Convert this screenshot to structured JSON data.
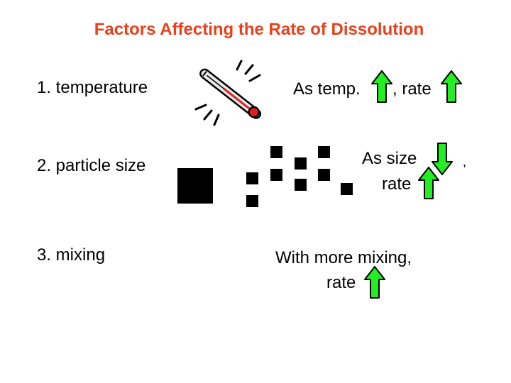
{
  "title": "Factors Affecting the Rate of Dissolution",
  "factors": [
    {
      "label": "1. temperature",
      "statement": {
        "pre": "As temp.",
        "mid": ", rate"
      }
    },
    {
      "label": "2. particle size",
      "statement": {
        "line1": "As size",
        "comma": ",",
        "line2": "rate"
      }
    },
    {
      "label": "3. mixing",
      "statement": {
        "line1": "With more mixing,",
        "line2": "rate"
      }
    }
  ],
  "icons": {
    "thermometer": "thermometer-icon",
    "up": "green-up-arrow-icon",
    "down": "green-down-arrow-icon"
  },
  "colors": {
    "title": "#e8401c",
    "arrow_fill": "#22ee22",
    "arrow_stroke": "#000000"
  }
}
